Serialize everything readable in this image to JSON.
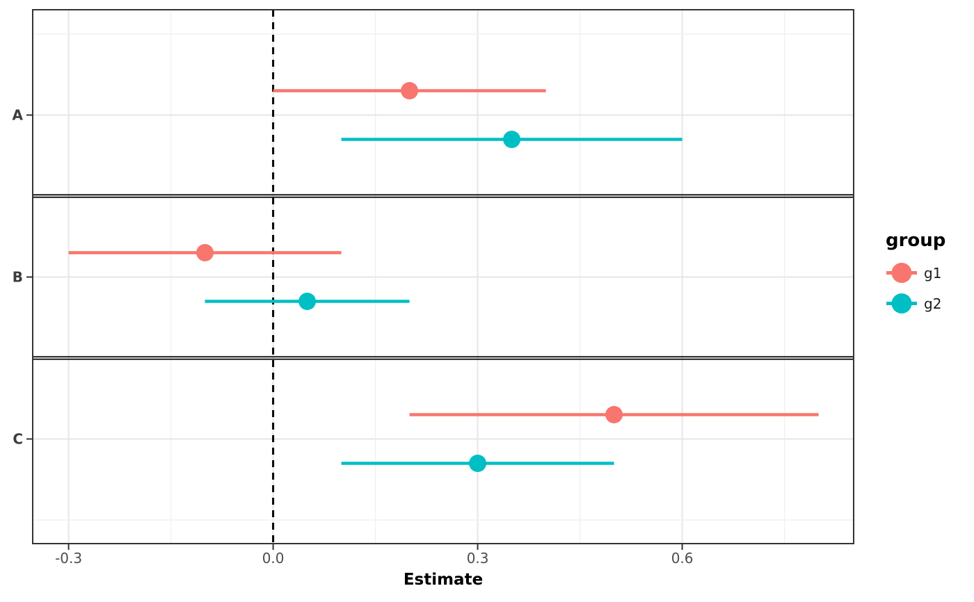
{
  "chart_data": {
    "type": "pointrange",
    "title": "",
    "xlabel": "Estimate",
    "ylabel": "",
    "grid": true,
    "legend": {
      "title": "group",
      "position": "right"
    },
    "categories": [
      "A",
      "B",
      "C"
    ],
    "x_ticks": {
      "major": [
        -0.3,
        0.0,
        0.3,
        0.6
      ],
      "labels": [
        "-0.3",
        "0.0",
        "0.3",
        "0.6"
      ],
      "minor": [
        -0.15,
        0.15,
        0.45,
        0.75
      ]
    },
    "xlim": [
      -0.35,
      0.85
    ],
    "reference_line_x": 0.0,
    "category_separators": true,
    "series": [
      {
        "name": "g1",
        "color": "#F8766D",
        "points": [
          {
            "category": "A",
            "estimate": 0.2,
            "lower": 0.0,
            "upper": 0.4
          },
          {
            "category": "B",
            "estimate": -0.1,
            "lower": -0.3,
            "upper": 0.1
          },
          {
            "category": "C",
            "estimate": 0.5,
            "lower": 0.2,
            "upper": 0.8
          }
        ]
      },
      {
        "name": "g2",
        "color": "#00BFC4",
        "points": [
          {
            "category": "A",
            "estimate": 0.35,
            "lower": 0.1,
            "upper": 0.6
          },
          {
            "category": "B",
            "estimate": 0.05,
            "lower": -0.1,
            "upper": 0.2
          },
          {
            "category": "C",
            "estimate": 0.3,
            "lower": 0.1,
            "upper": 0.5
          }
        ]
      }
    ],
    "colors": {
      "border": "#333333",
      "grid_major": "#E6E6E6",
      "grid_minor": "#F1F1F1",
      "axis_text": "#4D4D4D",
      "category_text": "#3C3C3C",
      "reference_line": "#000000",
      "separator": "#1A1A1A"
    }
  }
}
